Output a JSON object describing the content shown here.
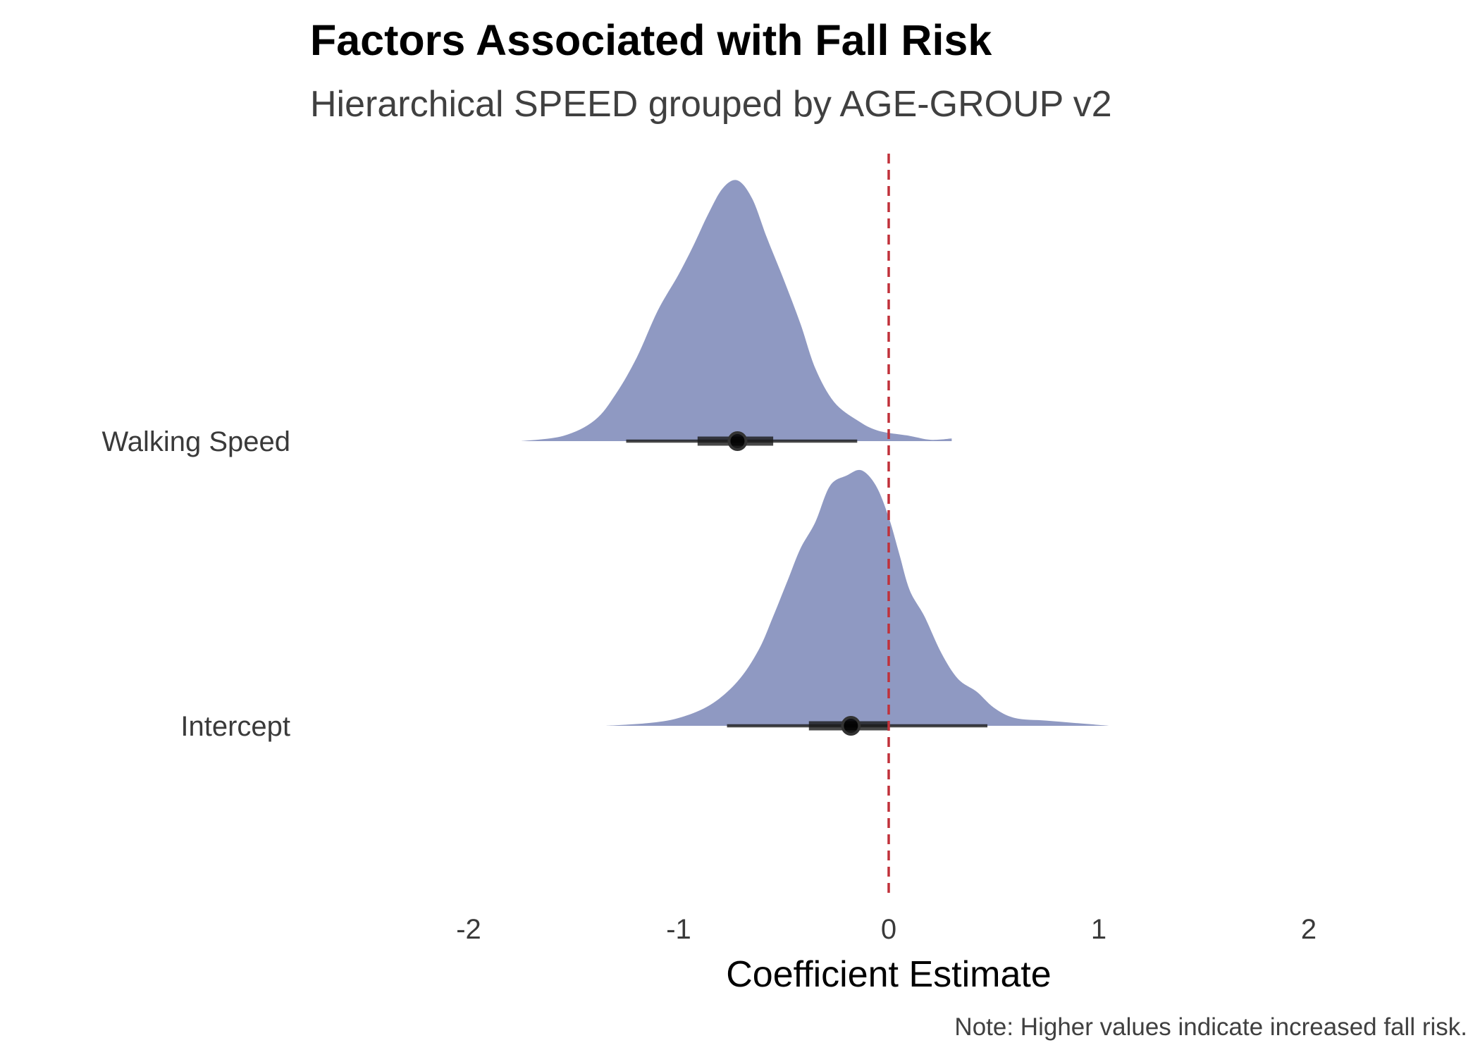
{
  "chart_data": {
    "type": "density",
    "title": "Factors Associated with Fall Risk",
    "subtitle": "Hierarchical SPEED grouped by AGE-GROUP v2",
    "xlabel": "Coefficient Estimate",
    "caption": "Note: Higher values indicate increased fall risk.",
    "xlim": [
      -2,
      2
    ],
    "x_ticks": [
      -2,
      -1,
      0,
      1,
      2
    ],
    "x_tick_labels": [
      "-2",
      "-1",
      "0",
      "1",
      "2"
    ],
    "reference_line": {
      "x": 0,
      "style": "dashed",
      "color": "#c0313a"
    },
    "fill_color": "#8f99c2",
    "point_color": "#000000",
    "grid": false,
    "series": [
      {
        "name": "Walking Speed",
        "median": -0.72,
        "interval_66": [
          -0.91,
          -0.55
        ],
        "interval_95": [
          -1.25,
          -0.15
        ],
        "density": [
          [
            -1.75,
            0.0
          ],
          [
            -1.55,
            0.02
          ],
          [
            -1.4,
            0.08
          ],
          [
            -1.3,
            0.18
          ],
          [
            -1.2,
            0.32
          ],
          [
            -1.1,
            0.5
          ],
          [
            -1.0,
            0.64
          ],
          [
            -0.93,
            0.75
          ],
          [
            -0.86,
            0.87
          ],
          [
            -0.79,
            0.97
          ],
          [
            -0.72,
            1.0
          ],
          [
            -0.65,
            0.93
          ],
          [
            -0.58,
            0.78
          ],
          [
            -0.5,
            0.62
          ],
          [
            -0.42,
            0.45
          ],
          [
            -0.35,
            0.28
          ],
          [
            -0.26,
            0.15
          ],
          [
            -0.15,
            0.08
          ],
          [
            -0.05,
            0.04
          ],
          [
            0.1,
            0.02
          ],
          [
            0.2,
            0.005
          ],
          [
            0.3,
            0.01
          ]
        ]
      },
      {
        "name": "Intercept",
        "median": -0.18,
        "interval_66": [
          -0.38,
          0.0
        ],
        "interval_95": [
          -0.77,
          0.47
        ],
        "density": [
          [
            -1.35,
            0.0
          ],
          [
            -1.15,
            0.01
          ],
          [
            -1.0,
            0.03
          ],
          [
            -0.85,
            0.08
          ],
          [
            -0.72,
            0.17
          ],
          [
            -0.62,
            0.29
          ],
          [
            -0.55,
            0.42
          ],
          [
            -0.48,
            0.56
          ],
          [
            -0.42,
            0.68
          ],
          [
            -0.35,
            0.78
          ],
          [
            -0.28,
            0.92
          ],
          [
            -0.2,
            0.96
          ],
          [
            -0.13,
            0.98
          ],
          [
            -0.06,
            0.92
          ],
          [
            0.0,
            0.8
          ],
          [
            0.05,
            0.66
          ],
          [
            0.1,
            0.52
          ],
          [
            0.17,
            0.42
          ],
          [
            0.25,
            0.28
          ],
          [
            0.33,
            0.18
          ],
          [
            0.42,
            0.13
          ],
          [
            0.5,
            0.07
          ],
          [
            0.6,
            0.03
          ],
          [
            0.75,
            0.02
          ],
          [
            0.9,
            0.01
          ],
          [
            1.05,
            0.0
          ]
        ]
      }
    ]
  }
}
